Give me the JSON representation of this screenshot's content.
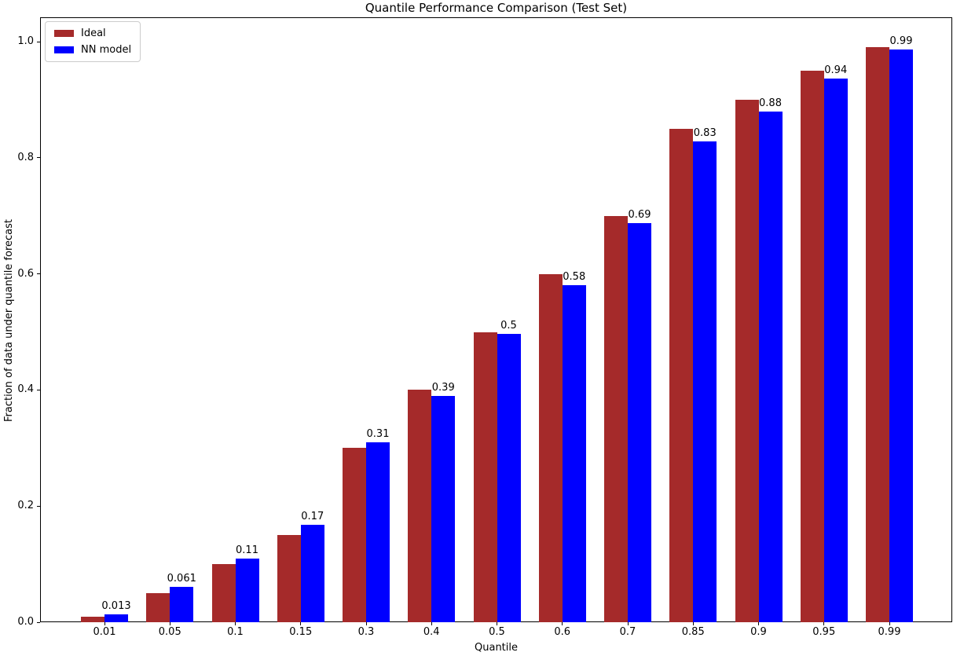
{
  "title": "Quantile Performance Comparison (Test Set)",
  "xlabel": "Quantile",
  "ylabel": "Fraction of data under quantile forecast",
  "legend": {
    "items": [
      {
        "label": "Ideal",
        "color": "#a52a2a"
      },
      {
        "label": "NN model",
        "color": "#0000ff"
      }
    ]
  },
  "chart_data": {
    "type": "bar",
    "title": "Quantile Performance Comparison (Test Set)",
    "xlabel": "Quantile",
    "ylabel": "Fraction of data under quantile forecast",
    "categories": [
      "0.01",
      "0.05",
      "0.1",
      "0.15",
      "0.3",
      "0.4",
      "0.5",
      "0.6",
      "0.7",
      "0.85",
      "0.9",
      "0.95",
      "0.99"
    ],
    "series": [
      {
        "name": "Ideal",
        "color": "#a52a2a",
        "values": [
          0.01,
          0.05,
          0.1,
          0.15,
          0.3,
          0.4,
          0.5,
          0.6,
          0.7,
          0.85,
          0.9,
          0.95,
          0.99
        ]
      },
      {
        "name": "NN model",
        "color": "#0000ff",
        "values": [
          0.013,
          0.061,
          0.11,
          0.168,
          0.31,
          0.39,
          0.497,
          0.58,
          0.688,
          0.828,
          0.88,
          0.937,
          0.987
        ],
        "bar_labels": [
          "0.013",
          "0.061",
          "0.11",
          "0.17",
          "0.31",
          "0.39",
          "0.5",
          "0.58",
          "0.69",
          "0.83",
          "0.88",
          "0.94",
          "0.99"
        ]
      }
    ],
    "y_ticks": {
      "values": [
        0.0,
        0.2,
        0.4,
        0.6,
        0.8,
        1.0
      ],
      "labels": [
        "0.0",
        "0.2",
        "0.4",
        "0.6",
        "0.8",
        "1.0"
      ]
    },
    "ylim": [
      0,
      1.04
    ],
    "grid": false,
    "legend_position": "upper left",
    "bar_label_series": "NN model"
  }
}
